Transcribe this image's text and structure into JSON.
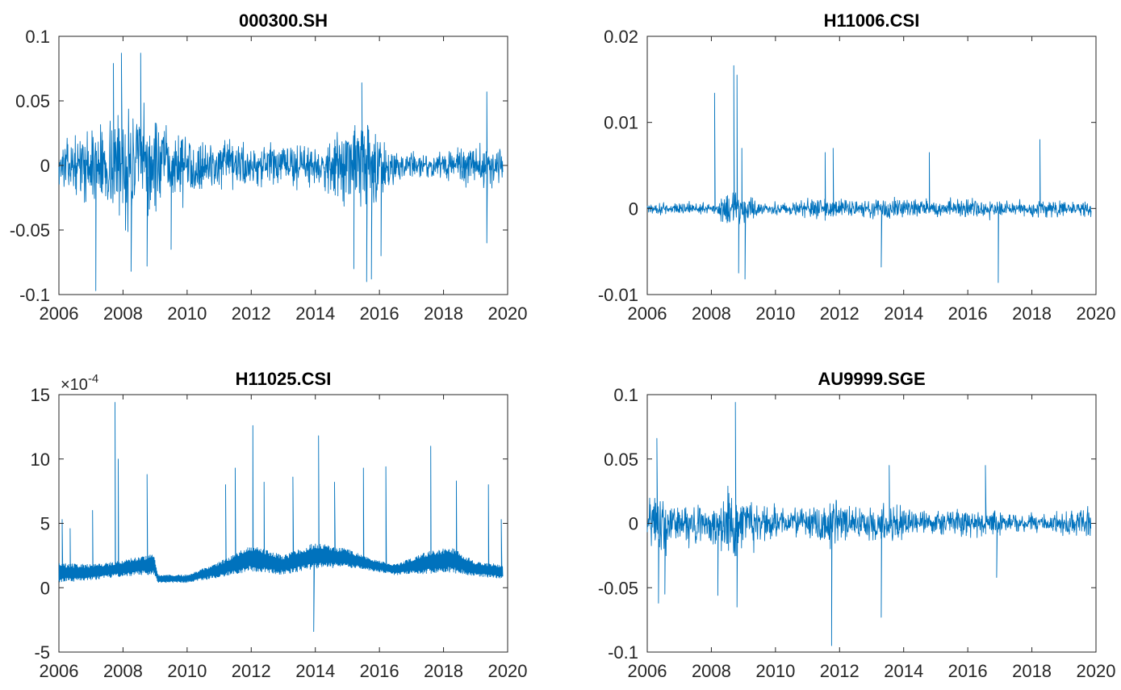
{
  "figure": {
    "x_ticks": [
      "2006",
      "2008",
      "2010",
      "2012",
      "2014",
      "2016",
      "2018",
      "2020"
    ]
  },
  "chart_data": [
    {
      "type": "line",
      "title": "000300.SH",
      "xlim": [
        2006,
        2020
      ],
      "ylim": [
        -0.1,
        0.1
      ],
      "y_ticks": [
        "-0.1",
        "-0.05",
        "0",
        "0.05",
        "0.1"
      ],
      "color": "#0072BD",
      "x_range": [
        2006.0,
        2019.85
      ],
      "envelope": [
        {
          "x": 2006.0,
          "amp": 0.018
        },
        {
          "x": 2006.5,
          "amp": 0.022
        },
        {
          "x": 2007.0,
          "amp": 0.03
        },
        {
          "x": 2007.5,
          "amp": 0.04
        },
        {
          "x": 2008.0,
          "amp": 0.048
        },
        {
          "x": 2008.5,
          "amp": 0.05
        },
        {
          "x": 2009.0,
          "amp": 0.04
        },
        {
          "x": 2009.5,
          "amp": 0.03
        },
        {
          "x": 2010.0,
          "amp": 0.026
        },
        {
          "x": 2011.0,
          "amp": 0.02
        },
        {
          "x": 2012.0,
          "amp": 0.02
        },
        {
          "x": 2013.0,
          "amp": 0.019
        },
        {
          "x": 2014.0,
          "amp": 0.017
        },
        {
          "x": 2014.8,
          "amp": 0.028
        },
        {
          "x": 2015.5,
          "amp": 0.045
        },
        {
          "x": 2016.0,
          "amp": 0.03
        },
        {
          "x": 2016.5,
          "amp": 0.015
        },
        {
          "x": 2017.5,
          "amp": 0.009
        },
        {
          "x": 2018.3,
          "amp": 0.016
        },
        {
          "x": 2019.0,
          "amp": 0.02
        },
        {
          "x": 2019.85,
          "amp": 0.016
        }
      ],
      "spikes": [
        {
          "x": 2007.15,
          "y": -0.097
        },
        {
          "x": 2007.7,
          "y": 0.079
        },
        {
          "x": 2007.95,
          "y": 0.087
        },
        {
          "x": 2008.25,
          "y": -0.082
        },
        {
          "x": 2008.55,
          "y": 0.087
        },
        {
          "x": 2008.75,
          "y": -0.078
        },
        {
          "x": 2009.5,
          "y": -0.065
        },
        {
          "x": 2015.2,
          "y": -0.08
        },
        {
          "x": 2015.45,
          "y": 0.064
        },
        {
          "x": 2015.6,
          "y": -0.09
        },
        {
          "x": 2015.75,
          "y": -0.088
        },
        {
          "x": 2016.05,
          "y": -0.07
        },
        {
          "x": 2019.35,
          "y": 0.057
        },
        {
          "x": 2019.35,
          "y": -0.06
        }
      ]
    },
    {
      "type": "line",
      "title": "H11006.CSI",
      "xlim": [
        2006,
        2020
      ],
      "ylim": [
        -0.01,
        0.02
      ],
      "y_ticks": [
        "-0.01",
        "0",
        "0.01",
        "0.02"
      ],
      "color": "#0072BD",
      "x_range": [
        2006.0,
        2019.85
      ],
      "envelope": [
        {
          "x": 2006.0,
          "amp": 0.0008
        },
        {
          "x": 2008.0,
          "amp": 0.0007
        },
        {
          "x": 2008.7,
          "amp": 0.0025
        },
        {
          "x": 2009.1,
          "amp": 0.002
        },
        {
          "x": 2009.5,
          "amp": 0.0006
        },
        {
          "x": 2010.5,
          "amp": 0.0009
        },
        {
          "x": 2011.5,
          "amp": 0.0014
        },
        {
          "x": 2012.5,
          "amp": 0.001
        },
        {
          "x": 2013.5,
          "amp": 0.0014
        },
        {
          "x": 2014.5,
          "amp": 0.0011
        },
        {
          "x": 2015.5,
          "amp": 0.0012
        },
        {
          "x": 2016.5,
          "amp": 0.0012
        },
        {
          "x": 2017.5,
          "amp": 0.0009
        },
        {
          "x": 2018.5,
          "amp": 0.001
        },
        {
          "x": 2019.85,
          "amp": 0.0009
        }
      ],
      "spikes": [
        {
          "x": 2008.1,
          "y": 0.0134
        },
        {
          "x": 2008.7,
          "y": 0.0166
        },
        {
          "x": 2008.8,
          "y": 0.0155
        },
        {
          "x": 2008.85,
          "y": -0.0075
        },
        {
          "x": 2008.95,
          "y": 0.007
        },
        {
          "x": 2009.05,
          "y": -0.0082
        },
        {
          "x": 2011.55,
          "y": 0.0065
        },
        {
          "x": 2011.8,
          "y": 0.007
        },
        {
          "x": 2013.3,
          "y": -0.0068
        },
        {
          "x": 2014.8,
          "y": 0.0065
        },
        {
          "x": 2016.95,
          "y": -0.0086
        },
        {
          "x": 2018.25,
          "y": 0.008
        }
      ]
    },
    {
      "type": "line",
      "title": "H11025.CSI",
      "exponent_label": "×10",
      "exponent_power": "-4",
      "xlim": [
        2006,
        2020
      ],
      "ylim": [
        -5,
        15
      ],
      "y_ticks": [
        "-5",
        "0",
        "5",
        "10",
        "15"
      ],
      "color": "#0072BD",
      "x_range": [
        2006.0,
        2019.85
      ],
      "band": [
        {
          "x": 2006.0,
          "lo": 0.4,
          "hi": 1.9
        },
        {
          "x": 2007.0,
          "lo": 0.6,
          "hi": 1.8
        },
        {
          "x": 2007.7,
          "lo": 0.8,
          "hi": 2.0
        },
        {
          "x": 2008.5,
          "lo": 1.0,
          "hi": 2.4
        },
        {
          "x": 2008.95,
          "lo": 1.0,
          "hi": 2.6
        },
        {
          "x": 2009.1,
          "lo": 0.4,
          "hi": 1.0
        },
        {
          "x": 2010.0,
          "lo": 0.4,
          "hi": 1.0
        },
        {
          "x": 2011.0,
          "lo": 0.8,
          "hi": 2.0
        },
        {
          "x": 2012.0,
          "lo": 1.3,
          "hi": 3.3
        },
        {
          "x": 2013.0,
          "lo": 1.0,
          "hi": 2.5
        },
        {
          "x": 2014.0,
          "lo": 1.5,
          "hi": 3.5
        },
        {
          "x": 2015.0,
          "lo": 1.6,
          "hi": 3.0
        },
        {
          "x": 2015.8,
          "lo": 1.3,
          "hi": 2.2
        },
        {
          "x": 2016.5,
          "lo": 1.0,
          "hi": 1.8
        },
        {
          "x": 2017.5,
          "lo": 1.1,
          "hi": 2.8
        },
        {
          "x": 2018.2,
          "lo": 1.2,
          "hi": 3.2
        },
        {
          "x": 2019.0,
          "lo": 0.9,
          "hi": 2.0
        },
        {
          "x": 2019.85,
          "lo": 0.7,
          "hi": 1.8
        }
      ],
      "spikes": [
        {
          "x": 2006.1,
          "y": 5.3
        },
        {
          "x": 2006.35,
          "y": 4.6
        },
        {
          "x": 2007.05,
          "y": 6.0
        },
        {
          "x": 2007.75,
          "y": 14.4
        },
        {
          "x": 2007.85,
          "y": 10.0
        },
        {
          "x": 2008.75,
          "y": 8.8
        },
        {
          "x": 2011.2,
          "y": 8.0
        },
        {
          "x": 2011.5,
          "y": 9.3
        },
        {
          "x": 2012.05,
          "y": 12.6
        },
        {
          "x": 2012.4,
          "y": 8.2
        },
        {
          "x": 2013.3,
          "y": 8.6
        },
        {
          "x": 2013.95,
          "y": -3.4
        },
        {
          "x": 2014.1,
          "y": 11.8
        },
        {
          "x": 2014.6,
          "y": 8.2
        },
        {
          "x": 2015.5,
          "y": 9.3
        },
        {
          "x": 2016.2,
          "y": 9.4
        },
        {
          "x": 2017.6,
          "y": 11.0
        },
        {
          "x": 2018.4,
          "y": 8.3
        },
        {
          "x": 2019.4,
          "y": 8.0
        },
        {
          "x": 2019.8,
          "y": 5.3
        }
      ]
    },
    {
      "type": "line",
      "title": "AU9999.SGE",
      "xlim": [
        2006,
        2020
      ],
      "ylim": [
        -0.1,
        0.1
      ],
      "y_ticks": [
        "-0.1",
        "-0.05",
        "0",
        "0.05",
        "0.1"
      ],
      "color": "#0072BD",
      "x_range": [
        2006.0,
        2019.85
      ],
      "envelope": [
        {
          "x": 2006.0,
          "amp": 0.02
        },
        {
          "x": 2006.4,
          "amp": 0.028
        },
        {
          "x": 2007.0,
          "amp": 0.016
        },
        {
          "x": 2008.0,
          "amp": 0.018
        },
        {
          "x": 2008.7,
          "amp": 0.03
        },
        {
          "x": 2009.3,
          "amp": 0.02
        },
        {
          "x": 2010.0,
          "amp": 0.014
        },
        {
          "x": 2011.0,
          "amp": 0.013
        },
        {
          "x": 2011.7,
          "amp": 0.022
        },
        {
          "x": 2012.5,
          "amp": 0.013
        },
        {
          "x": 2013.5,
          "amp": 0.016
        },
        {
          "x": 2014.5,
          "amp": 0.012
        },
        {
          "x": 2015.5,
          "amp": 0.012
        },
        {
          "x": 2016.5,
          "amp": 0.014
        },
        {
          "x": 2017.5,
          "amp": 0.008
        },
        {
          "x": 2018.5,
          "amp": 0.007
        },
        {
          "x": 2019.5,
          "amp": 0.012
        },
        {
          "x": 2019.85,
          "amp": 0.016
        }
      ],
      "spikes": [
        {
          "x": 2006.3,
          "y": 0.066
        },
        {
          "x": 2006.35,
          "y": -0.062
        },
        {
          "x": 2006.55,
          "y": -0.055
        },
        {
          "x": 2008.2,
          "y": -0.056
        },
        {
          "x": 2008.75,
          "y": 0.094
        },
        {
          "x": 2008.8,
          "y": -0.065
        },
        {
          "x": 2011.75,
          "y": -0.095
        },
        {
          "x": 2013.3,
          "y": -0.073
        },
        {
          "x": 2013.55,
          "y": 0.045
        },
        {
          "x": 2016.55,
          "y": 0.045
        },
        {
          "x": 2016.9,
          "y": -0.042
        }
      ]
    }
  ]
}
